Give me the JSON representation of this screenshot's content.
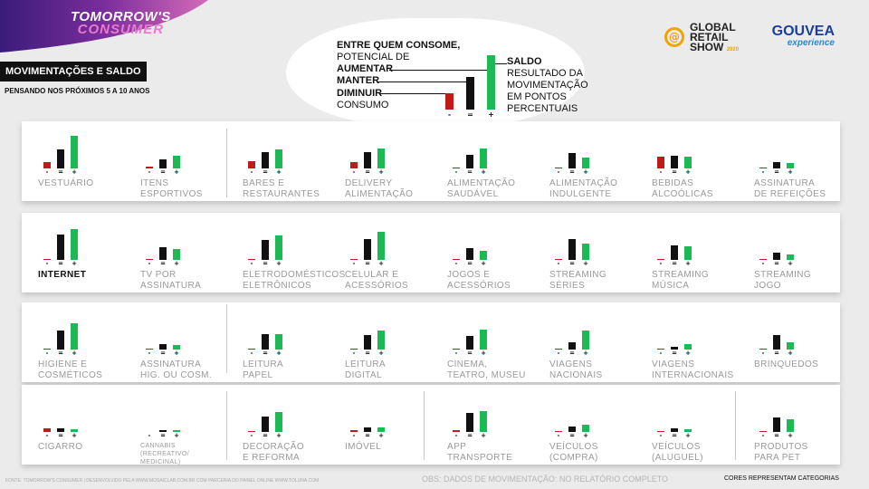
{
  "brand": {
    "line1": "TOMORROW'S",
    "line2": "CONSUMER"
  },
  "header": {
    "title": "MOVIMENTAÇÕES E SALDO",
    "subtitle": "PENSANDO NOS PRÓXIMOS 5 A 10 ANOS"
  },
  "legend": {
    "heading": "ENTRE QUEM CONSOME,",
    "sub": "POTENCIAL DE",
    "aumentar": "AUMENTAR",
    "manter": "MANTER",
    "diminuir": "DIMINUIR",
    "consumo": "CONSUMO",
    "saldo_title": "SALDO",
    "saldo_desc1": "RESULTADO DA",
    "saldo_desc2": "MOVIMENTAÇÃO",
    "saldo_desc3": "EM PONTOS",
    "saldo_desc4": "PERCENTUAIS",
    "minus": "-",
    "equal": "=",
    "plus": "+"
  },
  "logos": {
    "grs_at": "@",
    "grs_line1": "GLOBAL",
    "grs_line2": "RETAIL",
    "grs_line3": "SHOW",
    "grs_year": "2020",
    "gouvea": "GOUVEA",
    "experience": "experience"
  },
  "colors": {
    "diminuir": "#c21a1a",
    "manter": "#111111",
    "aumentar": "#1db954",
    "muted": "#9a9a9a"
  },
  "chart_data": {
    "type": "bar",
    "series": [
      "Diminuir",
      "Manter",
      "Aumentar"
    ],
    "note": "relative bar heights (approximate, no axis printed)",
    "categories": [
      {
        "label": "VESTUÁRIO",
        "values": [
          7,
          20,
          34
        ],
        "highlight": false
      },
      {
        "label": "ITENS\nESPORTIVOS",
        "values": [
          2,
          10,
          13
        ],
        "highlight": false
      },
      {
        "label": "BARES E\nRESTAURANTES",
        "values": [
          8,
          17,
          20
        ],
        "highlight": false
      },
      {
        "label": "DELIVERY\nALIMENTAÇÃO",
        "values": [
          7,
          17,
          21
        ],
        "highlight": false
      },
      {
        "label": "ALIMENTAÇÃO\nSAUDÁVEL",
        "values": [
          1,
          14,
          21
        ],
        "highlight": false
      },
      {
        "label": "ALIMENTAÇÃO\nINDULGENTE",
        "values": [
          1,
          16,
          11
        ],
        "highlight": false
      },
      {
        "label": "BEBIDAS\nALCOÓLICAS",
        "values": [
          12,
          13,
          12
        ],
        "highlight": false
      },
      {
        "label": "ASSINATURA\nDE REFEIÇÕES",
        "values": [
          1,
          7,
          6
        ],
        "highlight": false
      },
      {
        "label": "INTERNET",
        "values": [
          1,
          27,
          32
        ],
        "highlight": true
      },
      {
        "label": "TV POR\nASSINATURA",
        "values": [
          1,
          13,
          11
        ],
        "highlight": false
      },
      {
        "label": "ELETRODOMÉSTICOS\nELETRÔNICOS",
        "values": [
          1,
          21,
          26
        ],
        "highlight": false
      },
      {
        "label": "CELULAR E\nACESSÓRIOS",
        "values": [
          1,
          22,
          30
        ],
        "highlight": false
      },
      {
        "label": "JOGOS E\nACESSÓRIOS",
        "values": [
          1,
          12,
          10
        ],
        "highlight": false
      },
      {
        "label": "STREAMING\nSÉRIES",
        "values": [
          1,
          22,
          17
        ],
        "highlight": false
      },
      {
        "label": "STREAMING\nMÚSICA",
        "values": [
          1,
          15,
          14
        ],
        "highlight": false
      },
      {
        "label": "STREAMING\nJOGO",
        "values": [
          1,
          8,
          6
        ],
        "highlight": false
      },
      {
        "label": "HIGIENE E\nCOSMÉTICOS",
        "values": [
          1,
          20,
          28
        ],
        "highlight": false
      },
      {
        "label": "ASSINATURA\nHIG. OU COSM.",
        "values": [
          1,
          6,
          5
        ],
        "highlight": false
      },
      {
        "label": "LEITURA\nPAPEL",
        "values": [
          1,
          16,
          16
        ],
        "highlight": false
      },
      {
        "label": "LEITURA\nDIGITAL",
        "values": [
          1,
          15,
          20
        ],
        "highlight": false
      },
      {
        "label": "CINEMA,\nTEATRO, MUSEU",
        "values": [
          1,
          14,
          21
        ],
        "highlight": false
      },
      {
        "label": "VIAGENS\nNACIONAIS",
        "values": [
          1,
          8,
          20
        ],
        "highlight": false
      },
      {
        "label": "VIAGENS\nINTERNACIONAIS",
        "values": [
          1,
          3,
          6
        ],
        "highlight": false
      },
      {
        "label": "BRINQUEDOS",
        "values": [
          1,
          15,
          8
        ],
        "highlight": false
      },
      {
        "label": "CIGARRO",
        "values": [
          4,
          4,
          3
        ],
        "highlight": false
      },
      {
        "label": "CANNABIS\n(RECREATIVO/\nMEDICINAL)",
        "values": [
          0,
          2,
          2
        ],
        "highlight": false,
        "small": true
      },
      {
        "label": "DECORAÇÃO\nE REFORMA",
        "values": [
          1,
          16,
          21
        ],
        "highlight": false
      },
      {
        "label": "IMÓVEL",
        "values": [
          2,
          5,
          5
        ],
        "highlight": false
      },
      {
        "label": "APP\nTRANSPORTE",
        "values": [
          2,
          20,
          22
        ],
        "highlight": false
      },
      {
        "label": "VEÍCULOS\n(COMPRA)",
        "values": [
          1,
          6,
          8
        ],
        "highlight": false
      },
      {
        "label": "VEÍCULOS\n(ALUGUEL)",
        "values": [
          1,
          4,
          3
        ],
        "highlight": false
      },
      {
        "label": "PRODUTOS\nPARA PET",
        "values": [
          1,
          15,
          13
        ],
        "highlight": false
      }
    ]
  },
  "footer": {
    "source": "FONTE: TOMORROW'S CONSUMER | DESENVOLVIDO PELA WWW.MOSAICLAB.COM.BR COM PARCERIA DO PAINEL ONLINE WWW.TOLUNA.COM",
    "obs": "OBS: DADOS DE MOVIMENTAÇÃO: NO RELATÓRIO COMPLETO",
    "cores": "CORES REPRESENTAM CATEGORIAS"
  }
}
